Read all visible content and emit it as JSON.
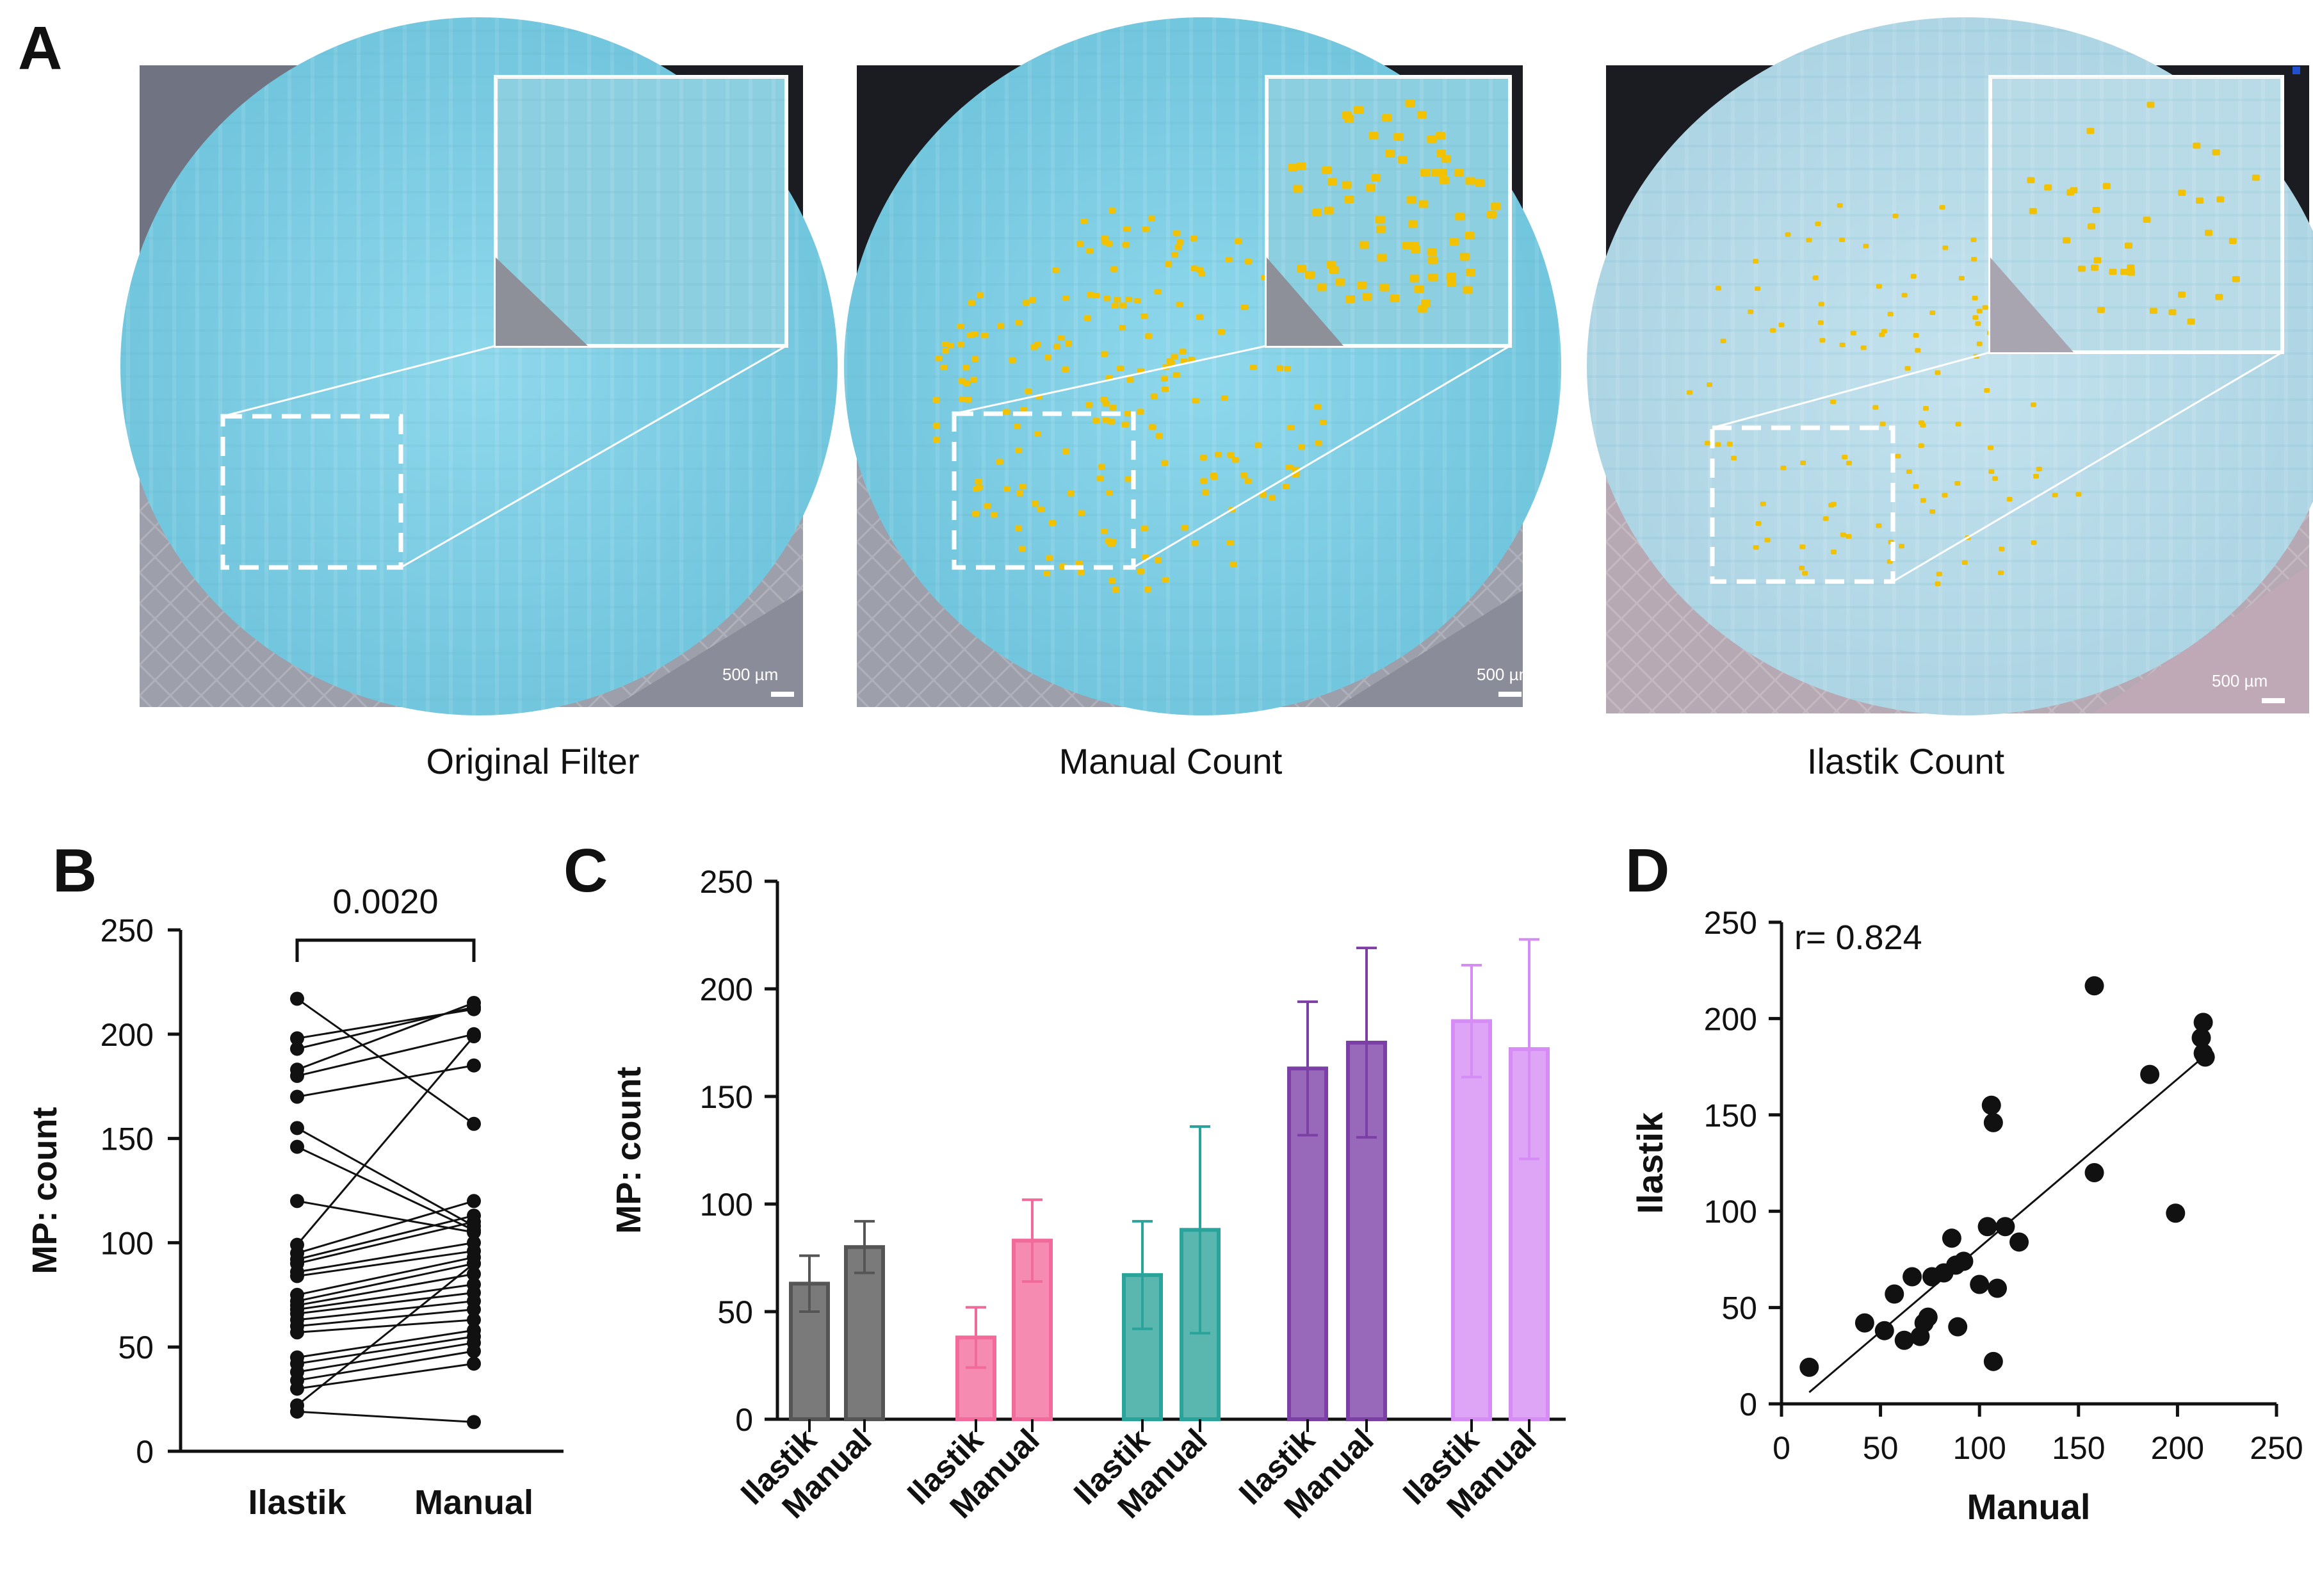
{
  "panel_letters": [
    "A",
    "B",
    "C",
    "D"
  ],
  "images": [
    {
      "caption": "Original Filter",
      "scale_bar": "500 µm",
      "overlay": "none"
    },
    {
      "caption": "Manual Count",
      "scale_bar": "500 µm",
      "overlay": "manual"
    },
    {
      "caption": "Ilastik  Count",
      "scale_bar": "500 µm",
      "overlay": "ilastik"
    }
  ],
  "colors": {
    "filter_cyan": "#7ecfe6",
    "filter_pale": "#b6dbe9",
    "marker_yellow": "#f2c200",
    "dark_gray": "#555555",
    "pink": "#f26a9a",
    "teal": "#2aa39a",
    "purple": "#7b3fa6",
    "lavender": "#d58cf4"
  },
  "chart_data": [
    {
      "type": "line",
      "panel": "B",
      "title": "",
      "xlabel": "",
      "ylabel": "MP: count",
      "categories": [
        "Ilastik",
        "Manual"
      ],
      "ylim": [
        0,
        250
      ],
      "yticks": [
        0,
        50,
        100,
        150,
        200,
        250
      ],
      "annotation": "0.0020",
      "pairs": [
        [
          217,
          157
        ],
        [
          198,
          212
        ],
        [
          193,
          213
        ],
        [
          183,
          215
        ],
        [
          180,
          200
        ],
        [
          170,
          185
        ],
        [
          155,
          108
        ],
        [
          146,
          106
        ],
        [
          120,
          105
        ],
        [
          99,
          199
        ],
        [
          95,
          120
        ],
        [
          92,
          113
        ],
        [
          90,
          110
        ],
        [
          86,
          100
        ],
        [
          84,
          96
        ],
        [
          75,
          93
        ],
        [
          72,
          90
        ],
        [
          70,
          85
        ],
        [
          68,
          80
        ],
        [
          66,
          76
        ],
        [
          63,
          72
        ],
        [
          60,
          68
        ],
        [
          57,
          63
        ],
        [
          45,
          58
        ],
        [
          42,
          55
        ],
        [
          38,
          52
        ],
        [
          34,
          48
        ],
        [
          30,
          42
        ],
        [
          22,
          90
        ],
        [
          19,
          14
        ]
      ]
    },
    {
      "type": "bar",
      "panel": "C",
      "title": "",
      "xlabel": "",
      "ylabel": "MP: count",
      "categories": [
        "Ilastik",
        "Manual",
        "Ilastik",
        "Manual",
        "Ilastik",
        "Manual",
        "Ilastik",
        "Manual",
        "Ilastik",
        "Manual"
      ],
      "ylim": [
        0,
        250
      ],
      "yticks": [
        0,
        50,
        100,
        150,
        200,
        250
      ],
      "groups": [
        {
          "color": "#555555",
          "values": [
            63,
            80
          ],
          "errors": [
            13,
            12
          ]
        },
        {
          "color": "#f26a9a",
          "values": [
            38,
            83
          ],
          "errors": [
            14,
            19
          ]
        },
        {
          "color": "#2aa39a",
          "values": [
            67,
            88
          ],
          "errors": [
            25,
            48
          ]
        },
        {
          "color": "#7b3fa6",
          "values": [
            163,
            175
          ],
          "errors": [
            31,
            44
          ]
        },
        {
          "color": "#d58cf4",
          "values": [
            185,
            172
          ],
          "errors": [
            26,
            51
          ]
        }
      ]
    },
    {
      "type": "scatter",
      "panel": "D",
      "title": "",
      "xlabel": "Manual",
      "ylabel": "Ilastik",
      "xlim": [
        0,
        250
      ],
      "ylim": [
        0,
        250
      ],
      "xticks": [
        0,
        50,
        100,
        150,
        200,
        250
      ],
      "yticks": [
        0,
        50,
        100,
        150,
        200,
        250
      ],
      "annotation": "r= 0.824",
      "fit": {
        "x": [
          14,
          213
        ],
        "y": [
          6,
          180
        ]
      },
      "points": [
        [
          14,
          19
        ],
        [
          42,
          42
        ],
        [
          52,
          38
        ],
        [
          57,
          57
        ],
        [
          62,
          33
        ],
        [
          66,
          66
        ],
        [
          70,
          35
        ],
        [
          72,
          42
        ],
        [
          74,
          45
        ],
        [
          76,
          66
        ],
        [
          82,
          68
        ],
        [
          86,
          86
        ],
        [
          88,
          72
        ],
        [
          89,
          40
        ],
        [
          92,
          74
        ],
        [
          100,
          62
        ],
        [
          104,
          92
        ],
        [
          106,
          155
        ],
        [
          107,
          146
        ],
        [
          107,
          22
        ],
        [
          109,
          60
        ],
        [
          113,
          92
        ],
        [
          120,
          84
        ],
        [
          158,
          120
        ],
        [
          158,
          217
        ],
        [
          186,
          171
        ],
        [
          199,
          99
        ],
        [
          212,
          190
        ],
        [
          213,
          182
        ],
        [
          213,
          198
        ],
        [
          214,
          180
        ]
      ]
    }
  ]
}
